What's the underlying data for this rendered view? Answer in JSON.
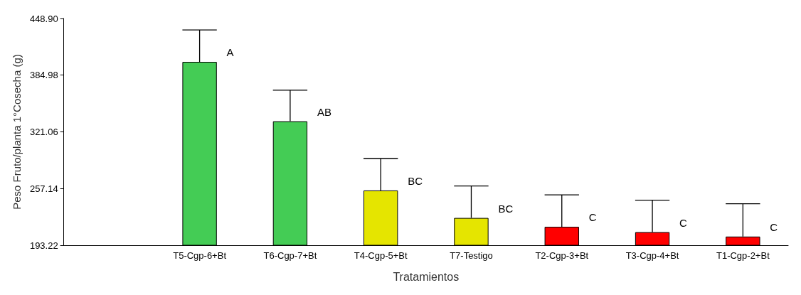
{
  "chart_data": {
    "type": "bar",
    "xlabel": "Tratamientos",
    "ylabel": "Peso Fruto/planta 1°Cosecha (g)",
    "categories": [
      null,
      "T5-Cgp-6+Bt",
      "T6-Cgp-7+Bt",
      "T4-Cgp-5+Bt",
      "T7-Testigo",
      "T2-Cgp-3+Bt",
      "T3-Cgp-4+Bt",
      "T1-Cgp-2+Bt"
    ],
    "values": [
      null,
      400,
      333,
      255,
      224,
      214,
      208,
      203
    ],
    "colors": [
      "#44cc55",
      "#44cc55",
      "#44cc55",
      "#e5e500",
      "#e5e500",
      "#ff0000",
      "#ff0000",
      "#ff0000"
    ],
    "errors": [
      null,
      [
        400,
        436
      ],
      [
        333,
        368
      ],
      [
        255,
        291
      ],
      [
        224,
        260
      ],
      [
        214,
        250
      ],
      [
        208,
        244
      ],
      [
        203,
        240
      ]
    ],
    "ylim": [
      193.22,
      448.9
    ],
    "yticks": [
      {
        "value": 193.22,
        "label": "193.22"
      },
      {
        "value": 257.14,
        "label": "257.14"
      },
      {
        "value": 321.06,
        "label": "321.06"
      },
      {
        "value": 384.98,
        "label": "384.98"
      },
      {
        "value": 448.9,
        "label": "448.90"
      }
    ],
    "grid": false,
    "annotations": [
      {
        "text": "A",
        "x": "T5-Cgp-6+Bt",
        "y": 400
      },
      {
        "text": "AB",
        "x": "T6-Cgp-7+Bt",
        "y": 333
      },
      {
        "text": "BC",
        "x": "T4-Cgp-5+Bt",
        "y": 255
      },
      {
        "text": "BC",
        "x": "T7-Testigo",
        "y": 224
      },
      {
        "text": "C",
        "x": "T2-Cgp-3+Bt",
        "y": 214
      },
      {
        "text": "C",
        "x": "T3-Cgp-4+Bt",
        "y": 208
      },
      {
        "text": "C",
        "x": "T1-Cgp-2+Bt",
        "y": 203
      }
    ]
  }
}
